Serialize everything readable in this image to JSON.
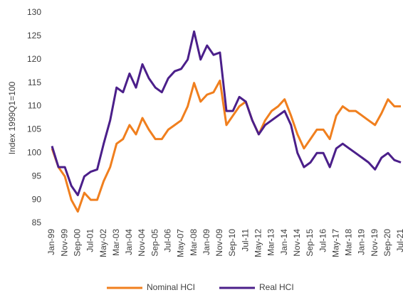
{
  "chart_data": {
    "type": "line",
    "y_label": "Index 1999Q1=100",
    "categories": [
      "Jan-99",
      null,
      "Nov-99",
      null,
      "Sep-00",
      null,
      "Jul-01",
      null,
      "May-02",
      null,
      "Mar-03",
      null,
      "Jan-04",
      null,
      "Nov-04",
      null,
      "Sep-05",
      null,
      "Jul-06",
      null,
      "May-07",
      null,
      "Mar-08",
      null,
      "Jan-09",
      null,
      "Nov-09",
      null,
      "Sep-10",
      null,
      "Jul-11",
      null,
      "May-12",
      null,
      "Mar-13",
      null,
      "Jan-14",
      null,
      "Nov-14",
      null,
      "Sep-15",
      null,
      "Jul-16",
      null,
      "May-17",
      null,
      "Mar-18",
      null,
      "Jan-19",
      null,
      "Nov-19",
      null,
      "Sep-20",
      null,
      "Jul-21"
    ],
    "series": [
      {
        "name": "Nominal HCI",
        "color": "#f07f1e",
        "values": [
          101,
          97,
          95,
          90,
          87.5,
          91.5,
          90,
          90,
          94,
          97,
          102,
          103,
          106,
          104,
          107.5,
          105,
          103,
          103,
          105,
          106,
          107,
          110,
          115,
          111,
          112.5,
          113,
          115.5,
          106,
          108,
          110,
          111,
          107,
          104,
          107,
          109,
          110,
          111.5,
          108,
          104,
          101,
          103,
          105,
          105,
          103,
          108,
          110,
          109,
          109,
          108,
          107,
          106,
          108.5,
          111.5,
          110,
          110
        ]
      },
      {
        "name": "Real HCI",
        "color": "#4b1f8a",
        "values": [
          101.5,
          97,
          97,
          93,
          91,
          95,
          96,
          96.5,
          102,
          107,
          114,
          113,
          117,
          114,
          119,
          116,
          114,
          113,
          116,
          117.5,
          118,
          120,
          126,
          120,
          123,
          121,
          121.5,
          109,
          109,
          112,
          111,
          107,
          104,
          106,
          107,
          108,
          109,
          106,
          100,
          97,
          98,
          100,
          100,
          97,
          101,
          102,
          101,
          100,
          99,
          98,
          96.5,
          99,
          100,
          98.5,
          98
        ]
      }
    ],
    "ylim": [
      85,
      130
    ],
    "yticks": [
      85,
      90,
      95,
      100,
      105,
      110,
      115,
      120,
      125,
      130
    ],
    "grid": false,
    "legend": "bottom"
  }
}
